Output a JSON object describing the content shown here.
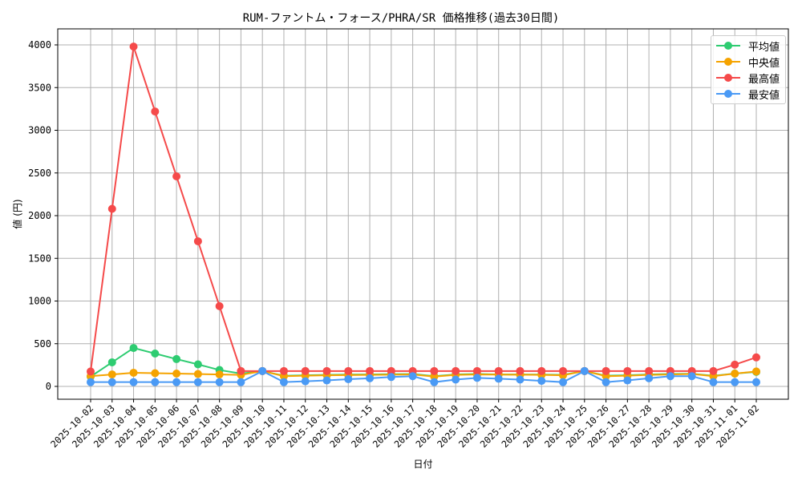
{
  "chart_data": {
    "type": "line",
    "title": "RUM-ファントム・フォース/PHRA/SR 価格推移(過去30日間)",
    "xlabel": "日付",
    "ylabel": "値 (円)",
    "ylim": [
      -150,
      4180
    ],
    "yticks": [
      0,
      500,
      1000,
      1500,
      2000,
      2500,
      3000,
      3500,
      4000
    ],
    "grid": true,
    "legend_position": "upper right",
    "categories": [
      "2025-10-02",
      "2025-10-03",
      "2025-10-04",
      "2025-10-05",
      "2025-10-06",
      "2025-10-07",
      "2025-10-08",
      "2025-10-09",
      "2025-10-10",
      "2025-10-11",
      "2025-10-12",
      "2025-10-13",
      "2025-10-14",
      "2025-10-15",
      "2025-10-16",
      "2025-10-17",
      "2025-10-18",
      "2025-10-19",
      "2025-10-20",
      "2025-10-21",
      "2025-10-22",
      "2025-10-23",
      "2025-10-24",
      "2025-10-25",
      "2025-10-26",
      "2025-10-27",
      "2025-10-28",
      "2025-10-29",
      "2025-10-30",
      "2025-10-31",
      "2025-11-01",
      "2025-11-02"
    ],
    "series": [
      {
        "name": "平均値",
        "color": "#2ecc71",
        "values": [
          115,
          282,
          450,
          385,
          320,
          258,
          192,
          150,
          180,
          125,
          130,
          135,
          138,
          140,
          143,
          145,
          120,
          140,
          145,
          140,
          140,
          138,
          135,
          180,
          125,
          130,
          140,
          145,
          148,
          125,
          150,
          170
        ]
      },
      {
        "name": "中央値",
        "color": "#f5a300",
        "values": [
          120,
          140,
          160,
          155,
          150,
          145,
          140,
          135,
          180,
          120,
          125,
          130,
          133,
          135,
          137,
          140,
          115,
          135,
          140,
          138,
          137,
          135,
          130,
          180,
          120,
          125,
          135,
          140,
          145,
          120,
          150,
          175
        ]
      },
      {
        "name": "最高値",
        "color": "#f54a4a",
        "values": [
          175,
          2080,
          3980,
          3220,
          2460,
          1700,
          940,
          180,
          180,
          180,
          180,
          180,
          180,
          180,
          180,
          180,
          180,
          180,
          180,
          180,
          180,
          180,
          180,
          180,
          180,
          180,
          180,
          180,
          180,
          180,
          255,
          340
        ]
      },
      {
        "name": "最安値",
        "color": "#4a9af5",
        "values": [
          50,
          50,
          50,
          50,
          50,
          50,
          50,
          50,
          180,
          50,
          60,
          70,
          85,
          95,
          110,
          120,
          50,
          80,
          100,
          90,
          80,
          65,
          50,
          180,
          50,
          70,
          95,
          120,
          120,
          50,
          50,
          50
        ]
      }
    ]
  }
}
